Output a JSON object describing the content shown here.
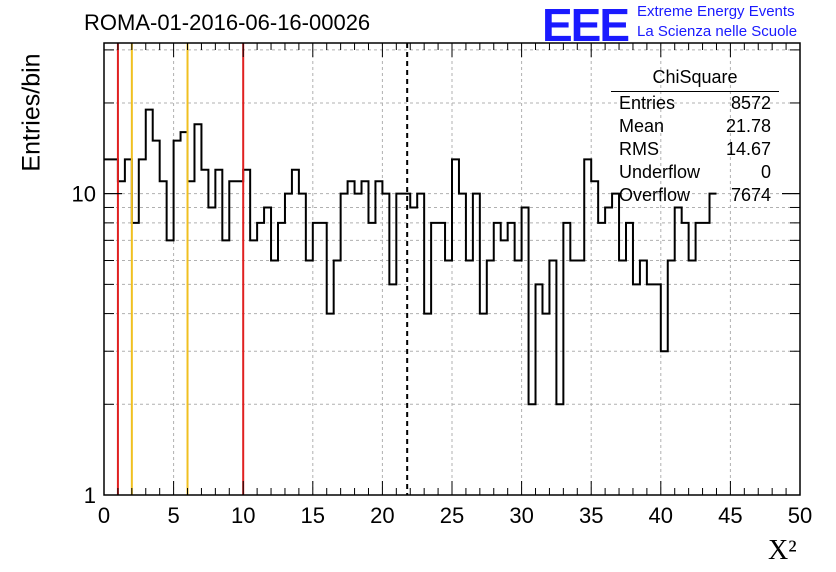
{
  "header": {
    "run_title": "ROMA-01-2016-06-16-00026"
  },
  "logo": {
    "mark": "EEE",
    "line1": "Extreme Energy Events",
    "line2": "La Scienza nelle Scuole"
  },
  "stats": {
    "title": "ChiSquare",
    "rows": [
      {
        "label": "Entries",
        "value": "8572"
      },
      {
        "label": "Mean",
        "value": "21.78"
      },
      {
        "label": "RMS",
        "value": "14.67"
      },
      {
        "label": "Underflow",
        "value": "0"
      },
      {
        "label": "Overflow",
        "value": "7674"
      }
    ]
  },
  "chart_data": {
    "type": "histogram",
    "xlabel": "X²",
    "ylabel": "Entries/bin",
    "xlim": [
      0,
      50
    ],
    "ylim": [
      1,
      30
    ],
    "y_scale": "log",
    "grid": true,
    "bin_width": 0.5,
    "x_ticks": [
      "0",
      "5",
      "10",
      "15",
      "20",
      "25",
      "30",
      "35",
      "40",
      "45",
      "50"
    ],
    "y_ticks": [
      "1",
      "10"
    ],
    "counts": [
      13,
      13,
      11,
      13,
      8,
      13,
      19,
      15,
      11,
      7,
      15,
      16,
      11,
      17,
      12,
      9,
      12,
      7,
      11,
      11,
      12,
      7,
      8,
      9,
      6,
      8,
      10,
      12,
      10,
      6,
      8,
      8,
      4,
      6,
      10,
      11,
      10,
      11,
      8,
      11,
      10,
      5,
      10,
      10,
      9,
      10,
      4,
      8,
      8,
      6,
      13,
      10,
      6,
      10,
      4,
      6,
      8,
      7,
      8,
      6,
      9,
      2,
      5,
      4,
      6,
      2,
      8,
      6,
      6,
      13,
      11,
      8,
      9,
      10,
      6,
      8,
      5,
      6,
      5,
      5,
      3,
      6,
      9,
      8,
      6,
      8,
      8,
      10
    ],
    "vertical_lines": [
      {
        "x": 1,
        "style": "solid",
        "color": "#e02020"
      },
      {
        "x": 2,
        "style": "solid",
        "color": "#f0c020"
      },
      {
        "x": 6,
        "style": "solid",
        "color": "#f0c020"
      },
      {
        "x": 10,
        "style": "solid",
        "color": "#e02020"
      },
      {
        "x": 21.78,
        "style": "dashed",
        "color": "#000000"
      }
    ]
  }
}
